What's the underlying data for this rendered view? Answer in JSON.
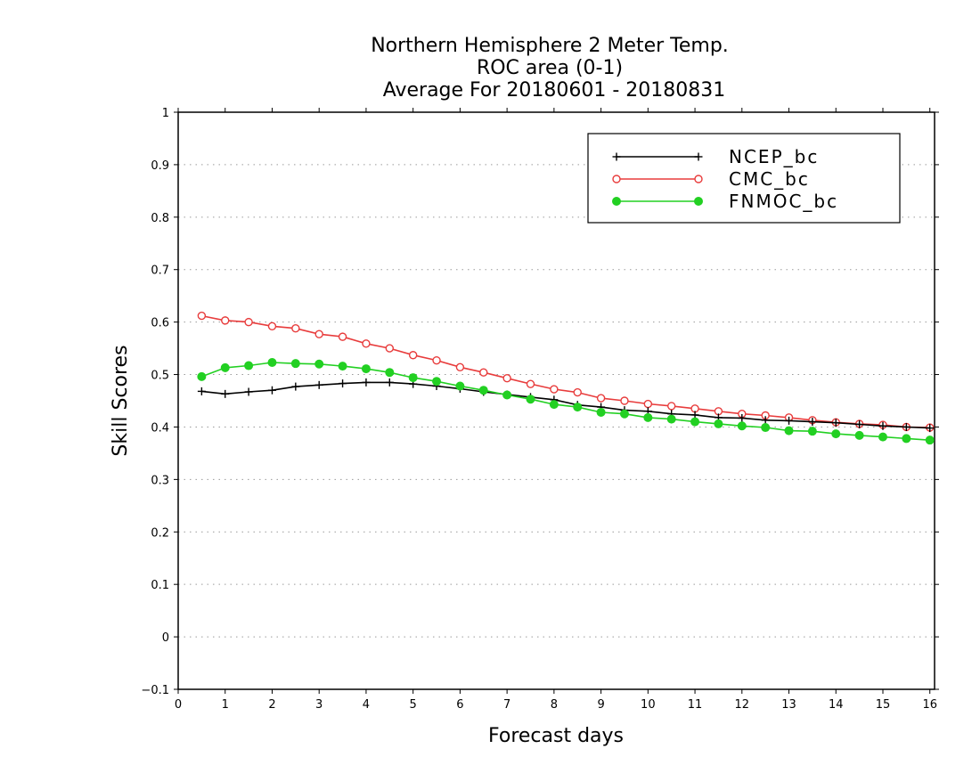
{
  "chart_data": {
    "type": "line",
    "title": [
      "Northern Hemisphere 2 Meter Temp.",
      "ROC area (0-1)",
      "Average For 20180601 - 20180831"
    ],
    "xlabel": "Forecast days",
    "ylabel": "Skill Scores",
    "xlim": [
      0,
      16.1
    ],
    "ylim": [
      -0.1,
      1
    ],
    "xticks": [
      0,
      1,
      2,
      3,
      4,
      5,
      6,
      7,
      8,
      9,
      10,
      11,
      12,
      13,
      14,
      15,
      16
    ],
    "yticks": [
      -0.1,
      0,
      0.1,
      0.2,
      0.3,
      0.4,
      0.5,
      0.6,
      0.7,
      0.8,
      0.9,
      1
    ],
    "ytick_labels": [
      "−0.1",
      "0",
      "0.1",
      "0.2",
      "0.3",
      "0.4",
      "0.5",
      "0.6",
      "0.7",
      "0.8",
      "0.9",
      "1"
    ],
    "grid": "horizontal-dotted",
    "legend_position": "top-right",
    "x": [
      0.5,
      1,
      1.5,
      2,
      2.5,
      3,
      3.5,
      4,
      4.5,
      5,
      5.5,
      6,
      6.5,
      7,
      7.5,
      8,
      8.5,
      9,
      9.5,
      10,
      10.5,
      11,
      11.5,
      12,
      12.5,
      13,
      13.5,
      14,
      14.5,
      15,
      15.5,
      16
    ],
    "series": [
      {
        "name": "NCEP_bc",
        "color": "#000000",
        "marker": "plus",
        "values": [
          0.468,
          0.463,
          0.467,
          0.47,
          0.477,
          0.48,
          0.483,
          0.485,
          0.485,
          0.482,
          0.478,
          0.473,
          0.467,
          0.462,
          0.457,
          0.452,
          0.442,
          0.438,
          0.432,
          0.43,
          0.425,
          0.423,
          0.418,
          0.417,
          0.413,
          0.412,
          0.41,
          0.408,
          0.405,
          0.402,
          0.4,
          0.398
        ]
      },
      {
        "name": "CMC_bc",
        "color": "#e83c3c",
        "marker": "open-circle",
        "values": [
          0.612,
          0.603,
          0.6,
          0.592,
          0.588,
          0.577,
          0.572,
          0.559,
          0.55,
          0.537,
          0.527,
          0.514,
          0.504,
          0.493,
          0.482,
          0.472,
          0.466,
          0.455,
          0.45,
          0.444,
          0.44,
          0.435,
          0.43,
          0.425,
          0.422,
          0.418,
          0.413,
          0.409,
          0.406,
          0.404,
          0.4,
          0.399
        ]
      },
      {
        "name": "FNMOC_bc",
        "color": "#22d022",
        "marker": "filled-circle",
        "values": [
          0.496,
          0.513,
          0.517,
          0.523,
          0.521,
          0.52,
          0.516,
          0.511,
          0.504,
          0.494,
          0.487,
          0.478,
          0.47,
          0.461,
          0.453,
          0.443,
          0.438,
          0.428,
          0.425,
          0.418,
          0.415,
          0.41,
          0.406,
          0.402,
          0.399,
          0.393,
          0.392,
          0.387,
          0.384,
          0.381,
          0.378,
          0.375
        ]
      }
    ]
  }
}
